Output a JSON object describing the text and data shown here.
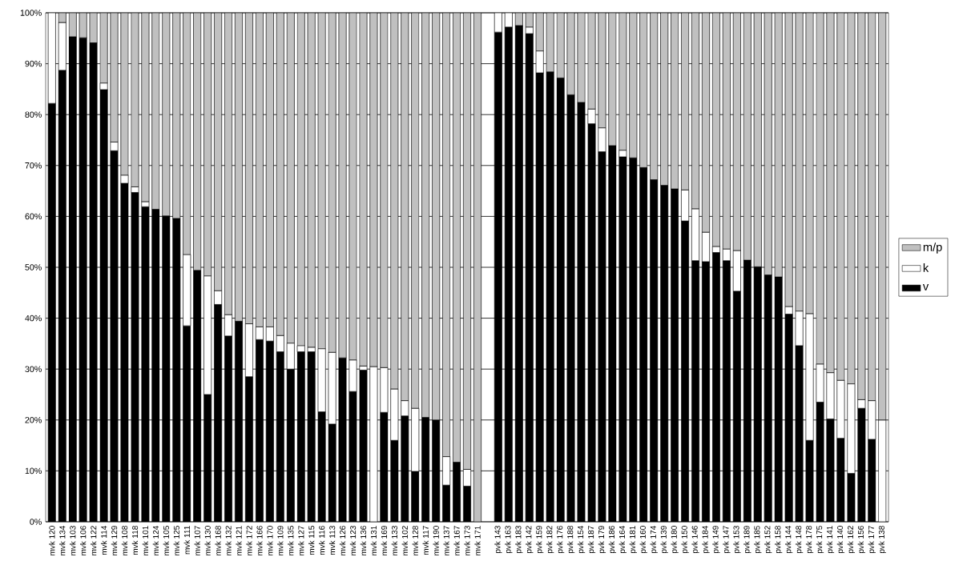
{
  "chart_data": {
    "type": "bar",
    "stacked": true,
    "grid": "y",
    "legend": "right",
    "categories": [
      "mvk 120",
      "mvk 134",
      "mvk 103",
      "mvk 106",
      "mvk 122",
      "mvk 114",
      "mvk 129",
      "mvk 108",
      "mvk 118",
      "mvk 101",
      "mvk 124",
      "mvk 105",
      "mvk 125",
      "mvk 111",
      "mvk 107",
      "mvk 130",
      "mvk 168",
      "mvk 132",
      "mvk 121",
      "mvk 172",
      "mvk 166",
      "mvk 170",
      "mvk 109",
      "mvk 135",
      "mvk 127",
      "mvk 115",
      "mvk 116",
      "mvk 113",
      "mvk 126",
      "mvk 123",
      "mvk 136",
      "mvk 131",
      "mvk 169",
      "mvk 133",
      "mvk 102",
      "mvk 128",
      "mvk 117",
      "mvk 190",
      "mvk 137",
      "mvk 167",
      "mvk 173",
      "mvk 171",
      null,
      "pvk 143",
      "pvk 163",
      "pvk 183",
      "pvk 142",
      "pvk 159",
      "pvk 182",
      "pvk 176",
      "pvk 188",
      "pvk 154",
      "pvk 187",
      "pvk 179",
      "pvk 186",
      "pvk 164",
      "pvk 181",
      "pvk 160",
      "pvk 174",
      "pvk 139",
      "pvk 180",
      "pvk 150",
      "pvk 146",
      "pvk 184",
      "pvk 149",
      "pvk 147",
      "pvk 153",
      "pvk 189",
      "pvk 185",
      "pvk 152",
      "pvk 158",
      "pvk 144",
      "pvk 148",
      "pvk 178",
      "pvk 175",
      "pvk 141",
      "pvk 140",
      "pvk 162",
      "pvk 156",
      "pvk 177",
      "pvk 138"
    ],
    "series": [
      {
        "name": "v",
        "color": "#000000",
        "values": [
          82.2,
          88.7,
          95.3,
          95.1,
          94.1,
          84.9,
          72.9,
          66.5,
          64.7,
          61.9,
          61.4,
          60.1,
          59.6,
          38.5,
          49.4,
          25.0,
          42.7,
          36.5,
          39.4,
          28.5,
          35.8,
          35.5,
          33.4,
          30.0,
          33.4,
          33.4,
          21.6,
          19.2,
          32.2,
          25.6,
          29.8,
          0,
          21.5,
          16.0,
          20.8,
          9.9,
          20.5,
          20.0,
          7.2,
          11.7,
          7.0,
          0,
          null,
          96.2,
          97.2,
          97.5,
          95.9,
          88.2,
          88.4,
          87.2,
          83.9,
          82.4,
          78.2,
          72.7,
          73.9,
          71.7,
          71.5,
          69.6,
          67.2,
          66.1,
          65.4,
          59.1,
          51.3,
          51.1,
          52.9,
          51.3,
          45.3,
          51.4,
          50.1,
          48.5,
          48.1,
          40.8,
          34.6,
          16.0,
          23.5,
          20.2,
          16.4,
          9.5,
          22.3,
          16.2,
          0
        ]
      },
      {
        "name": "k",
        "color": "#ffffff",
        "values": [
          17.8,
          9.4,
          0,
          0,
          0,
          1.3,
          1.7,
          1.6,
          1.1,
          1.0,
          0,
          0,
          0,
          14.0,
          0,
          23.3,
          2.7,
          4.2,
          0,
          10.4,
          2.5,
          2.8,
          3.2,
          5.1,
          1.2,
          0.9,
          12.4,
          14.1,
          0,
          6.2,
          0.8,
          30.5,
          8.8,
          10.1,
          3.0,
          12.4,
          0,
          0,
          5.6,
          0,
          3.3,
          0,
          null,
          3.8,
          2.8,
          0,
          1.3,
          4.3,
          0,
          0,
          0,
          0,
          2.9,
          4.7,
          0,
          1.3,
          0,
          0,
          0,
          0,
          0,
          6.1,
          10.2,
          5.8,
          1.2,
          2.3,
          8.0,
          0,
          0,
          0,
          0,
          1.5,
          6.8,
          24.9,
          7.5,
          9.1,
          11.4,
          17.6,
          1.7,
          7.6,
          20.0
        ]
      },
      {
        "name": "m/p",
        "color": "#c0c0c0",
        "values": [
          0,
          1.9,
          4.7,
          4.9,
          5.9,
          13.8,
          25.4,
          31.9,
          34.2,
          37.1,
          38.6,
          39.9,
          40.4,
          47.5,
          50.6,
          51.7,
          54.6,
          59.3,
          60.6,
          61.1,
          61.7,
          61.7,
          63.4,
          64.9,
          65.4,
          65.7,
          66.0,
          66.7,
          67.8,
          68.2,
          69.4,
          69.5,
          69.7,
          73.9,
          76.2,
          77.7,
          79.5,
          80.0,
          87.2,
          88.3,
          89.7,
          100,
          null,
          0,
          0,
          2.5,
          2.8,
          7.5,
          11.6,
          12.8,
          16.1,
          17.6,
          18.9,
          22.6,
          26.1,
          27.0,
          28.5,
          30.4,
          32.8,
          33.9,
          34.6,
          34.8,
          38.5,
          43.1,
          45.9,
          46.4,
          46.7,
          48.6,
          49.9,
          51.5,
          51.9,
          57.7,
          58.6,
          59.1,
          69.0,
          70.7,
          72.2,
          72.9,
          76.0,
          76.2,
          80.0
        ]
      }
    ],
    "ylim": [
      0,
      100
    ],
    "yticks": [
      {
        "value": 0,
        "label": "0%"
      },
      {
        "value": 10,
        "label": "10%"
      },
      {
        "value": 20,
        "label": "20%"
      },
      {
        "value": 30,
        "label": "30%"
      },
      {
        "value": 40,
        "label": "40%"
      },
      {
        "value": 50,
        "label": "50%"
      },
      {
        "value": 60,
        "label": "60%"
      },
      {
        "value": 70,
        "label": "70%"
      },
      {
        "value": 80,
        "label": "80%"
      },
      {
        "value": 90,
        "label": "90%"
      },
      {
        "value": 100,
        "label": "100%"
      }
    ]
  }
}
